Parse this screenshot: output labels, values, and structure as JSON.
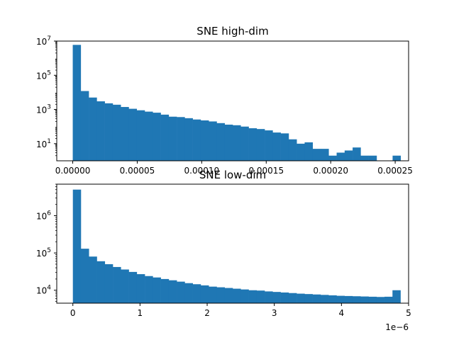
{
  "colors": {
    "bar": "#1f77b4",
    "axis": "#000000",
    "background": "#ffffff"
  },
  "chart_data": [
    {
      "type": "bar",
      "title": "SNE high-dim",
      "xlabel": "",
      "ylabel": "",
      "yscale": "log",
      "grid": false,
      "xlim": [
        -1.24e-05,
        0.0002604
      ],
      "ylim": [
        1.0,
        10000000
      ],
      "x_ticks": [
        0.0,
        5e-05,
        0.0001,
        0.00015,
        0.0002,
        0.00025
      ],
      "x_tick_labels": [
        "0.00000",
        "0.00005",
        "0.00010",
        "0.00015",
        "0.00020",
        "0.00025"
      ],
      "y_tick_base": "10",
      "y_tick_exponents": [
        "1",
        "3",
        "5",
        "7"
      ],
      "y_ticks": [
        10,
        1000,
        100000,
        10000000
      ],
      "bin_start": 0.0,
      "bin_width": 6.2e-06,
      "counts": [
        6000000,
        12000,
        5000,
        3000,
        2300,
        1900,
        1400,
        1100,
        900,
        750,
        650,
        500,
        380,
        360,
        310,
        260,
        230,
        200,
        160,
        130,
        120,
        100,
        80,
        72,
        60,
        45,
        40,
        18,
        10,
        12,
        5,
        5,
        2,
        3,
        4,
        6,
        2,
        2,
        0,
        0,
        2
      ]
    },
    {
      "type": "bar",
      "title": "SNE low-dim",
      "xlabel": "",
      "ylabel": "",
      "yscale": "log",
      "grid": false,
      "offset_text": "1e−6",
      "xlim": [
        -0.24,
        5.0
      ],
      "ylim": [
        4500,
        7000000
      ],
      "x_ticks": [
        0,
        1,
        2,
        3,
        4,
        5
      ],
      "x_tick_labels": [
        "0",
        "1",
        "2",
        "3",
        "4",
        "5"
      ],
      "y_tick_base": "10",
      "y_tick_exponents": [
        "4",
        "5",
        "6"
      ],
      "y_ticks": [
        10000,
        100000,
        1000000
      ],
      "bin_start": 0.0,
      "bin_width": 0.119,
      "counts": [
        5000000,
        130000,
        80000,
        60000,
        50000,
        42000,
        36000,
        31000,
        27000,
        24000,
        22000,
        20000,
        18500,
        17000,
        15500,
        14500,
        13500,
        12500,
        12000,
        11500,
        11000,
        10500,
        10000,
        9800,
        9300,
        9000,
        8700,
        8400,
        8100,
        7900,
        7700,
        7500,
        7300,
        7100,
        7000,
        6900,
        6800,
        6700,
        6600,
        6700,
        10000
      ]
    }
  ]
}
